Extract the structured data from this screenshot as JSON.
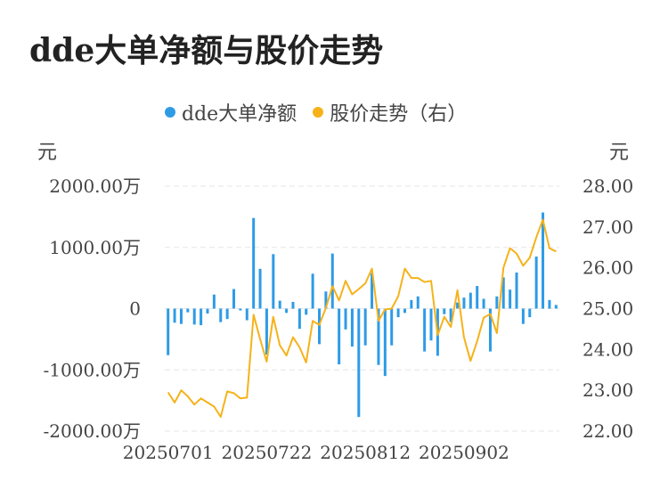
{
  "title": "dde大单净额与股价走势",
  "chart_data": {
    "type": "bar+line",
    "legend": [
      {
        "name": "dde大单净额",
        "color": "#2E9BE6"
      },
      {
        "name": "股价走势（右）",
        "color": "#F5B21A"
      }
    ],
    "left_axis": {
      "unit": "元",
      "ticks": [
        "2000.00万",
        "1000.00万",
        "0",
        "-1000.00万",
        "-2000.00万"
      ],
      "min": -2000,
      "max": 2000
    },
    "right_axis": {
      "unit": "元",
      "ticks": [
        "28.00",
        "27.00",
        "26.00",
        "25.00",
        "24.00",
        "23.00",
        "22.00"
      ],
      "min": 22,
      "max": 28
    },
    "x_labels": [
      "20250701",
      "20250722",
      "20250812",
      "20250902"
    ],
    "x_label_indices": [
      0,
      15,
      30,
      45
    ],
    "grid": true,
    "series": [
      {
        "name": "dde大单净额",
        "type": "bar",
        "unit": "万元",
        "values": [
          -760,
          -230,
          -250,
          -60,
          -260,
          -270,
          -80,
          230,
          -220,
          -170,
          320,
          -30,
          -190,
          1480,
          650,
          -750,
          890,
          130,
          -70,
          110,
          -330,
          -100,
          570,
          -580,
          280,
          900,
          -910,
          -340,
          -620,
          -1770,
          -600,
          580,
          -920,
          -1100,
          -600,
          -140,
          -70,
          140,
          200,
          -700,
          -520,
          -770,
          -90,
          -220,
          100,
          180,
          260,
          370,
          160,
          -700,
          200,
          510,
          310,
          590,
          -250,
          -140,
          850,
          1570,
          140,
          60
        ]
      },
      {
        "name": "股价走势（右）",
        "type": "line",
        "unit": "元",
        "values": [
          22.95,
          22.7,
          23.0,
          22.85,
          22.65,
          22.8,
          22.7,
          22.6,
          22.35,
          22.97,
          22.93,
          22.8,
          22.82,
          24.85,
          24.25,
          23.7,
          24.8,
          24.1,
          23.85,
          24.3,
          24.05,
          23.68,
          24.7,
          24.6,
          25.02,
          25.55,
          25.2,
          25.68,
          25.35,
          25.48,
          25.62,
          25.98,
          24.7,
          24.98,
          25.0,
          25.3,
          25.98,
          25.75,
          25.75,
          25.65,
          25.68,
          24.35,
          24.8,
          24.55,
          25.45,
          24.3,
          23.72,
          24.2,
          24.78,
          24.87,
          24.4,
          26.0,
          26.48,
          26.35,
          26.05,
          26.25,
          26.75,
          27.18,
          26.48,
          26.4
        ]
      }
    ]
  }
}
